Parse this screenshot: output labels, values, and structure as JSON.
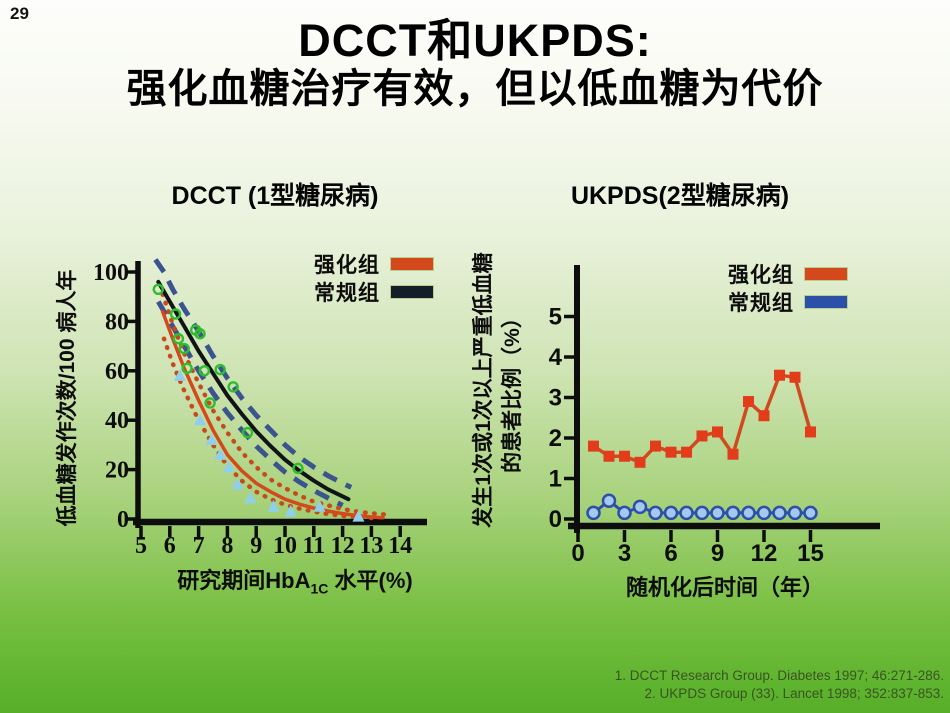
{
  "slide": {
    "number": "29"
  },
  "title": {
    "line1": "DCCT和UKPDS:",
    "line2": "强化血糖治疗有效，但以低血糖为代价"
  },
  "footer": {
    "citation1": "1. DCCT Research Group. Diabetes 1997; 46:271-286.",
    "citation2": "2. UKPDS Group (33). Lancet 1998; 352:837-853."
  },
  "chart_data": [
    {
      "id": "dcct",
      "type": "line",
      "title": "DCCT (1型糖尿病)",
      "xlabel": "研究期间HbA1C 水平(%)",
      "xlabel_parts": {
        "prefix": "研究期间HbA",
        "sub": "1C",
        "suffix": " 水平(%)"
      },
      "ylabel": "低血糖发作次数/100 病人年",
      "xlim": [
        5,
        15.2
      ],
      "ylim": [
        0,
        106
      ],
      "xticks": [
        5,
        6,
        7,
        8,
        9,
        10,
        11,
        12,
        13,
        14
      ],
      "yticks": [
        0,
        20,
        40,
        60,
        80,
        100
      ],
      "grid": false,
      "legend_position": "top-right",
      "legend": [
        {
          "label": "强化组",
          "color": "#d4491c"
        },
        {
          "label": "常规组",
          "color": "#141e28"
        }
      ],
      "series": [
        {
          "name": "常规组置信区间上限",
          "style": "dashed",
          "color": "#3b5490",
          "width": 5,
          "points": [
            [
              5.5,
              105
            ],
            [
              5.8,
              100
            ],
            [
              6.1,
              93
            ],
            [
              6.5,
              85
            ],
            [
              7,
              76
            ],
            [
              7.5,
              66
            ],
            [
              8,
              57
            ],
            [
              8.5,
              49
            ],
            [
              9,
              42
            ],
            [
              9.5,
              36
            ],
            [
              10,
              30
            ],
            [
              10.5,
              25
            ],
            [
              11,
              21
            ],
            [
              11.5,
              17.5
            ],
            [
              12,
              14.5
            ],
            [
              12.3,
              12.8
            ]
          ]
        },
        {
          "name": "常规组置信区间下限",
          "style": "dashed",
          "color": "#3b5490",
          "width": 5,
          "points": [
            [
              5.6,
              88
            ],
            [
              6,
              80
            ],
            [
              6.5,
              70
            ],
            [
              7,
              60
            ],
            [
              7.5,
              51
            ],
            [
              8,
              43
            ],
            [
              8.5,
              36
            ],
            [
              9,
              29.5
            ],
            [
              9.5,
              24
            ],
            [
              10,
              19
            ],
            [
              10.5,
              15
            ],
            [
              11,
              11.5
            ],
            [
              11.5,
              8.5
            ],
            [
              12,
              5.5
            ]
          ]
        },
        {
          "name": "强化组置信区间上限",
          "style": "dotted",
          "color": "#c8491c",
          "width": 4.5,
          "points": [
            [
              5.75,
              91
            ],
            [
              6.1,
              79
            ],
            [
              6.5,
              67
            ],
            [
              7,
              55
            ],
            [
              7.5,
              44
            ],
            [
              8,
              35
            ],
            [
              8.5,
              27
            ],
            [
              9,
              21
            ],
            [
              9.5,
              16
            ],
            [
              10,
              12.5
            ],
            [
              10.5,
              9.5
            ],
            [
              11,
              7
            ],
            [
              11.5,
              5.5
            ],
            [
              12,
              4
            ],
            [
              12.5,
              3
            ],
            [
              13,
              2.3
            ],
            [
              13.5,
              1.8
            ]
          ]
        },
        {
          "name": "强化组置信区间下限",
          "style": "dotted",
          "color": "#c8491c",
          "width": 4.5,
          "points": [
            [
              5.8,
              73
            ],
            [
              6.1,
              63
            ],
            [
              6.5,
              52
            ],
            [
              7,
              40
            ],
            [
              7.5,
              30
            ],
            [
              8,
              21.5
            ],
            [
              8.5,
              15.5
            ],
            [
              9,
              11
            ],
            [
              9.5,
              8
            ],
            [
              10,
              5.8
            ],
            [
              10.5,
              4.2
            ],
            [
              11,
              3
            ],
            [
              11.5,
              2
            ],
            [
              12,
              1.3
            ],
            [
              12.5,
              0.8
            ],
            [
              13,
              0.4
            ],
            [
              13.3,
              0.3
            ]
          ]
        },
        {
          "name": "常规组拟合曲线",
          "style": "solid",
          "color": "#101418",
          "width": 4,
          "points": [
            [
              5.6,
              96
            ],
            [
              6,
              88
            ],
            [
              6.5,
              78
            ],
            [
              7,
              68
            ],
            [
              7.5,
              59
            ],
            [
              8,
              50
            ],
            [
              8.5,
              42.5
            ],
            [
              9,
              35.5
            ],
            [
              9.5,
              29.5
            ],
            [
              10,
              24
            ],
            [
              10.5,
              19.5
            ],
            [
              11,
              15.5
            ],
            [
              11.5,
              12
            ],
            [
              12.2,
              8
            ]
          ]
        },
        {
          "name": "强化组拟合曲线",
          "style": "solid",
          "color": "#d4491c",
          "width": 3.5,
          "points": [
            [
              5.75,
              84
            ],
            [
              6.1,
              73
            ],
            [
              6.5,
              61
            ],
            [
              7,
              48
            ],
            [
              7.5,
              36
            ],
            [
              8,
              26
            ],
            [
              8.5,
              19.5
            ],
            [
              9,
              14.5
            ],
            [
              9.5,
              11
            ],
            [
              10,
              8
            ],
            [
              10.5,
              6
            ],
            [
              11,
              4.4
            ],
            [
              11.5,
              3.2
            ],
            [
              12,
              2.2
            ],
            [
              12.5,
              1.4
            ],
            [
              13,
              0.8
            ],
            [
              13.4,
              0.5
            ]
          ]
        },
        {
          "name": "常规组观测点",
          "style": "scatter",
          "marker": "circle",
          "color": "#2ebe2e",
          "fill": "none",
          "stroke": "#2ebe2e",
          "strokeWidth": 2.4,
          "size": 4.5,
          "points": [
            [
              5.6,
              93
            ],
            [
              6.2,
              83
            ],
            [
              6.3,
              73
            ],
            [
              6.5,
              69
            ],
            [
              6.6,
              61
            ],
            [
              6.9,
              76.5
            ],
            [
              7.05,
              75
            ],
            [
              7.2,
              60
            ],
            [
              7.4,
              47
            ],
            [
              7.75,
              60.5
            ],
            [
              8.2,
              53.5
            ],
            [
              8.7,
              35
            ],
            [
              10.45,
              20.5
            ]
          ]
        },
        {
          "name": "强化组观测点",
          "style": "scatter",
          "marker": "triangle",
          "color": "#8fcfec",
          "fill": "#8fcfec",
          "size": 6,
          "points": [
            [
              6.35,
              58
            ],
            [
              7.05,
              40
            ],
            [
              7.45,
              32
            ],
            [
              7.75,
              26
            ],
            [
              8.05,
              21
            ],
            [
              8.35,
              14
            ],
            [
              8.8,
              8.5
            ],
            [
              9.6,
              5
            ],
            [
              10.2,
              3
            ],
            [
              11.2,
              5
            ],
            [
              12.55,
              1
            ]
          ]
        }
      ]
    },
    {
      "id": "ukpds",
      "type": "line",
      "title": "UKPDS(2型糖尿病)",
      "xlabel": "随机化后时间（年）",
      "ylabel": "发生1次或1次以上严重低血糖的患者比例（%）",
      "ylabel_line1": "发生1次或1次以上严重低血糖",
      "ylabel_line2": "的患者比例（%）",
      "xlim": [
        0,
        19.5
      ],
      "ylim": [
        0,
        6.3
      ],
      "xticks": [
        0,
        3,
        6,
        9,
        12,
        15
      ],
      "yticks": [
        0,
        1,
        2,
        3,
        4,
        5
      ],
      "grid": false,
      "legend_position": "top-right",
      "legend": [
        {
          "label": "强化组",
          "color": "#d4491c"
        },
        {
          "label": "常规组",
          "color": "#2b50a8"
        }
      ],
      "series": [
        {
          "name": "强化组",
          "style": "line-marker",
          "marker": "square",
          "color": "#cf4a1e",
          "fill": "#e23c1a",
          "width": 3.5,
          "size": 5.5,
          "points": [
            [
              1,
              1.8
            ],
            [
              2,
              1.55
            ],
            [
              3,
              1.55
            ],
            [
              4,
              1.4
            ],
            [
              5,
              1.8
            ],
            [
              6,
              1.65
            ],
            [
              7,
              1.65
            ],
            [
              8,
              2.05
            ],
            [
              9,
              2.15
            ],
            [
              10,
              1.6
            ],
            [
              11,
              2.9
            ],
            [
              12,
              2.55
            ],
            [
              13,
              3.55
            ],
            [
              14,
              3.5
            ],
            [
              15,
              2.15
            ]
          ]
        },
        {
          "name": "常规组",
          "style": "line-marker",
          "marker": "circle",
          "color": "#2b50a8",
          "fill": "#a6c8ee",
          "stroke": "#2b50a8",
          "strokeWidth": 2.5,
          "width": 3,
          "size": 6,
          "points": [
            [
              1,
              0.15
            ],
            [
              2,
              0.45
            ],
            [
              3,
              0.15
            ],
            [
              4,
              0.3
            ],
            [
              5,
              0.15
            ],
            [
              6,
              0.15
            ],
            [
              7,
              0.15
            ],
            [
              8,
              0.15
            ],
            [
              9,
              0.15
            ],
            [
              10,
              0.15
            ],
            [
              11,
              0.15
            ],
            [
              12,
              0.15
            ],
            [
              13,
              0.15
            ],
            [
              14,
              0.15
            ],
            [
              15,
              0.15
            ]
          ]
        }
      ]
    }
  ]
}
